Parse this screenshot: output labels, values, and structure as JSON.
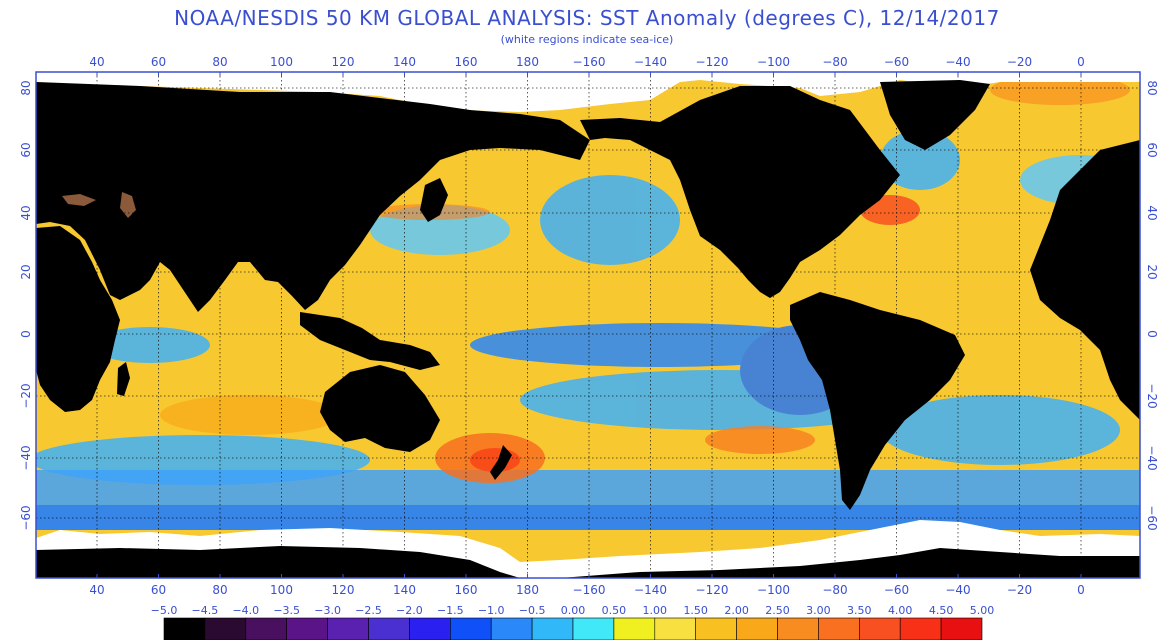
{
  "header": {
    "title": "NOAA/NESDIS 50 KM GLOBAL ANALYSIS: SST Anomaly (degrees C), 12/14/2017",
    "subtitle": "(white regions indicate sea-ice)"
  },
  "axes": {
    "lon_labels": [
      "40",
      "60",
      "80",
      "100",
      "120",
      "140",
      "160",
      "180",
      "−160",
      "−140",
      "−120",
      "−100",
      "−80",
      "−60",
      "−40",
      "−20",
      "0"
    ],
    "lat_labels_left": [
      "80",
      "60",
      "40",
      "20",
      "0",
      "−20",
      "−40",
      "−60"
    ],
    "lat_labels_right": [
      "80",
      "60",
      "40",
      "20",
      "0",
      "−20",
      "−40",
      "−60"
    ]
  },
  "colorbar": {
    "labels": [
      "−5.0",
      "−4.5",
      "−4.0",
      "−3.5",
      "−3.0",
      "−2.5",
      "−2.0",
      "−1.5",
      "−1.0",
      "−0.5",
      "0.00",
      "0.50",
      "1.00",
      "1.50",
      "2.00",
      "2.50",
      "3.00",
      "3.50",
      "4.00",
      "4.50",
      "5.00"
    ],
    "colors": [
      "#000000",
      "#2a0a30",
      "#4a1060",
      "#5a1488",
      "#5a20b0",
      "#4a30d0",
      "#2a20f0",
      "#1050f8",
      "#2a88f8",
      "#30b8f8",
      "#40e8f8",
      "#f0f020",
      "#f8e040",
      "#f8c020",
      "#f8a818",
      "#f88c20",
      "#f87020",
      "#f85020",
      "#f83018",
      "#e81010"
    ]
  },
  "colors": {
    "ocean_base": "#f8c830",
    "land": "#000000",
    "sea_ice": "#ffffff",
    "cool_anomaly": "#2a88f8",
    "warm_anomaly": "#f87020",
    "label_blue": "#3a4fd0"
  }
}
